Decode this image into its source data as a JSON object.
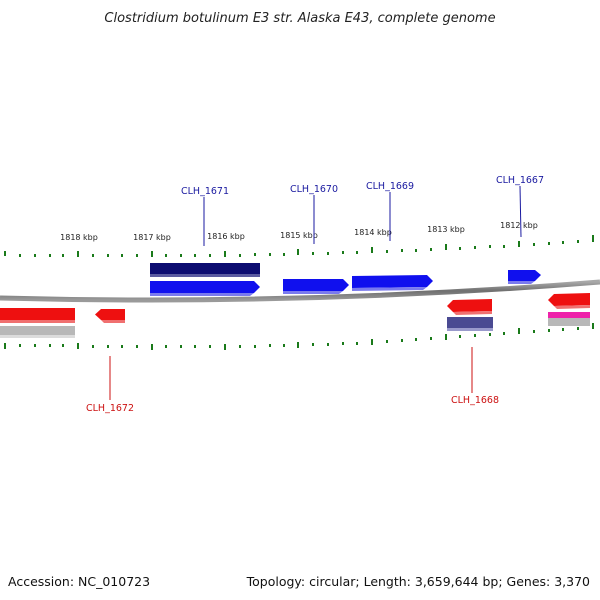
{
  "title": "Clostridium botulinum E3 str. Alaska E43, complete genome",
  "footer": {
    "accession": "Accession: NC_010723",
    "summary": "Topology: circular; Length: 3,659,644 bp; Genes: 3,370"
  },
  "colors": {
    "background": "#ffffff",
    "backbone": "#808080",
    "tick": "#1a7a1a",
    "forward_gene": "#1010ee",
    "forward_dark": "#0c0c70",
    "reverse_gene": "#ee1010",
    "reverse_dark": "#4a4a92",
    "forward_label": "#1a1aa0",
    "reverse_label": "#cc1111",
    "gray_feature": "#b8b8b8",
    "pink_feature": "#ee22aa"
  },
  "scale_labels": [
    "1818 kbp",
    "1817 kbp",
    "1816 kbp",
    "1815 kbp",
    "1814 kbp",
    "1813 kbp",
    "1812 kbp"
  ],
  "forward_labels": [
    "CLH_1671",
    "CLH_1670",
    "CLH_1669",
    "CLH_1667"
  ],
  "reverse_labels": [
    "CLH_1672",
    "CLH_1668"
  ]
}
